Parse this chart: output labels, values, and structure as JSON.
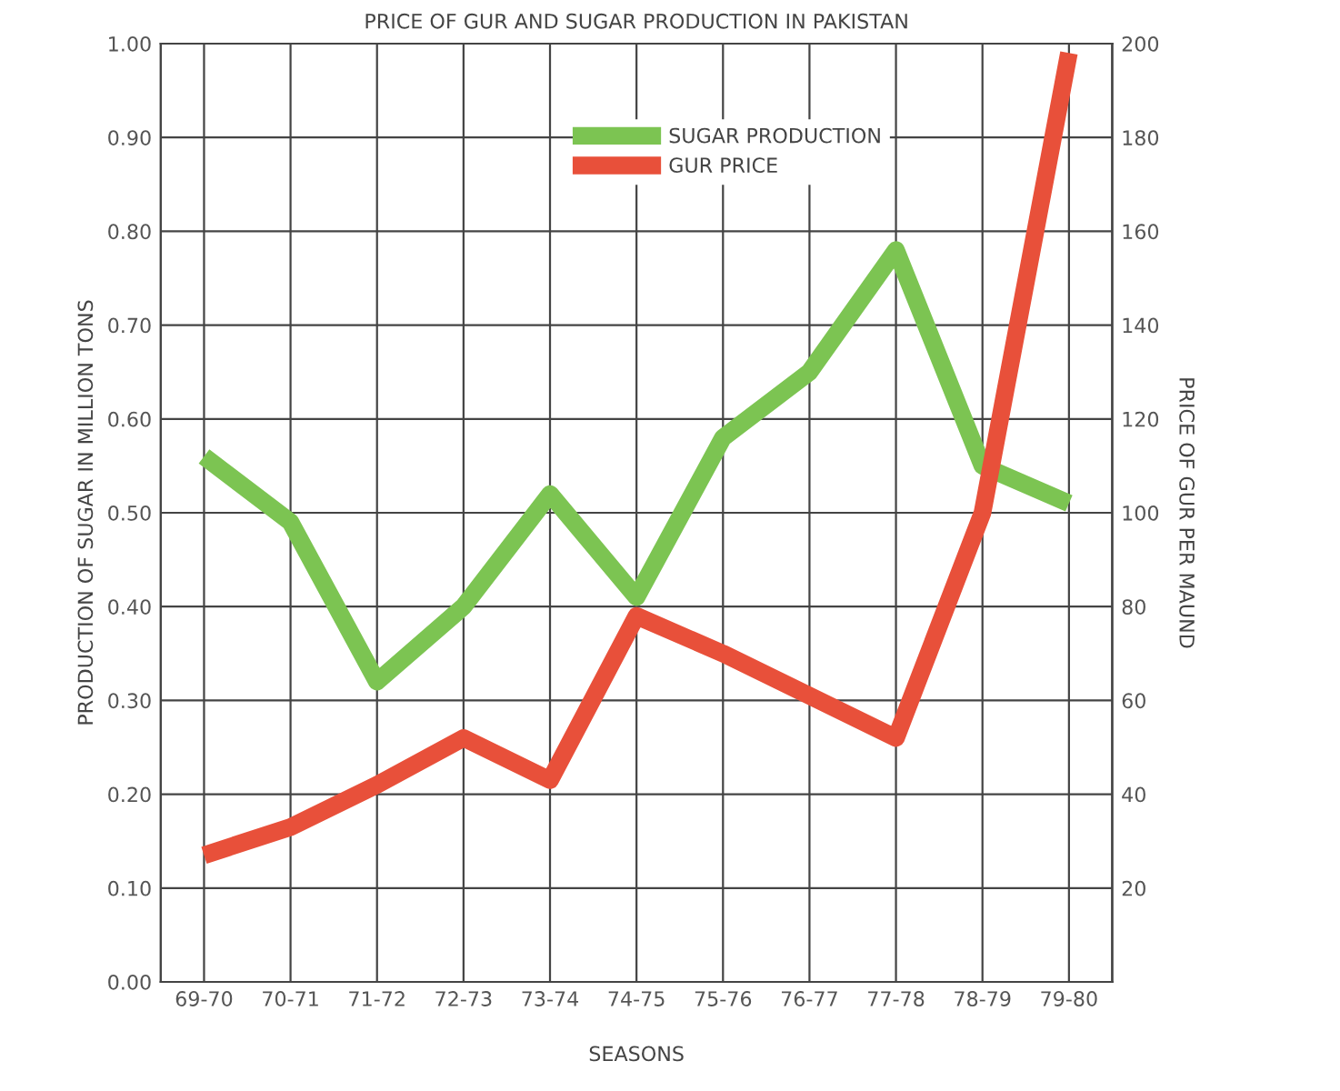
{
  "chart_data": {
    "type": "line",
    "title": "PRICE OF GUR AND SUGAR PRODUCTION IN PAKISTAN",
    "xlabel": "SEASONS",
    "ylabel": "PRODUCTION OF SUGAR IN MILLION TONS",
    "y2label": "PRICE OF GUR PER MAUND",
    "categories": [
      "69-70",
      "70-71",
      "71-72",
      "72-73",
      "73-74",
      "74-75",
      "75-76",
      "76-77",
      "77-78",
      "78-79",
      "79-80"
    ],
    "series": [
      {
        "name": "SUGAR PRODUCTION",
        "color": "#7cc452",
        "values": [
          0.56,
          0.49,
          0.32,
          0.4,
          0.52,
          0.41,
          0.58,
          0.65,
          0.78,
          0.55,
          0.51
        ]
      },
      {
        "name": "GUR PRICE",
        "color": "#e8503a",
        "axis": "y2",
        "values": [
          27,
          33,
          42,
          52,
          43,
          78,
          70,
          61,
          52,
          100,
          198
        ]
      }
    ],
    "ylim": [
      0,
      1
    ],
    "yticks": [
      {
        "value": 0,
        "label": "0.00"
      },
      {
        "value": 0.1,
        "label": "0.10"
      },
      {
        "value": 0.2,
        "label": "0.20"
      },
      {
        "value": 0.3,
        "label": "0.30"
      },
      {
        "value": 0.4,
        "label": "0.40"
      },
      {
        "value": 0.5,
        "label": "0.50"
      },
      {
        "value": 0.6,
        "label": "0.60"
      },
      {
        "value": 0.7,
        "label": "0.70"
      },
      {
        "value": 0.8,
        "label": "0.80"
      },
      {
        "value": 0.9,
        "label": "0.90"
      },
      {
        "value": 1,
        "label": "1.00"
      }
    ],
    "y2lim": [
      0,
      200
    ],
    "y2ticks": [
      20,
      40,
      60,
      80,
      100,
      120,
      140,
      160,
      180,
      200
    ],
    "grid": true,
    "legend": "top",
    "marker": "none",
    "line_style": "solid"
  }
}
